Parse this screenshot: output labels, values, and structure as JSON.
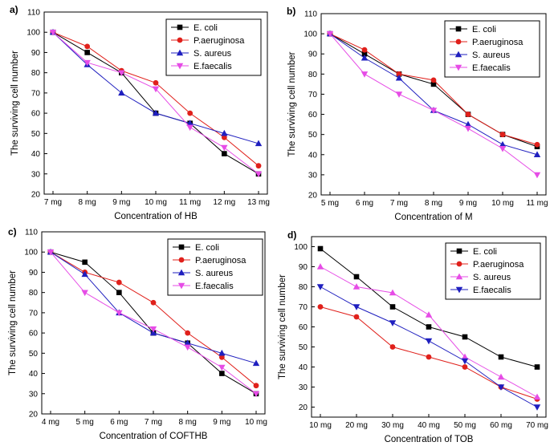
{
  "chart_data": [
    {
      "type": "line",
      "panel_label": "a)",
      "xlabel": "Concentration of HB",
      "ylabel": "The surviving cell number",
      "categories": [
        "7  mg",
        "8  mg",
        "9  mg",
        "10 mg",
        "11 mg",
        "12 mg",
        "13 mg"
      ],
      "ylim": [
        20,
        110
      ],
      "yticks": [
        20,
        30,
        40,
        50,
        60,
        70,
        80,
        90,
        100,
        110
      ],
      "legend_position": "top-right",
      "series": [
        {
          "name": "E. coli",
          "color": "#000000",
          "marker": "square",
          "values": [
            100,
            90,
            80,
            60,
            55,
            40,
            30
          ]
        },
        {
          "name": "P.aeruginosa",
          "color": "#e0201b",
          "marker": "circle",
          "values": [
            100,
            93,
            81,
            75,
            60,
            48,
            34
          ]
        },
        {
          "name": "S. aureus",
          "color": "#1f1fbf",
          "marker": "triangle-up",
          "values": [
            100,
            84,
            70,
            60,
            55,
            50,
            45
          ]
        },
        {
          "name": "E.faecalis",
          "color": "#e64ce6",
          "marker": "triangle-down",
          "values": [
            100,
            85,
            80,
            72,
            53,
            43,
            30
          ]
        }
      ]
    },
    {
      "type": "line",
      "panel_label": "b)",
      "xlabel": "Concentration of M",
      "ylabel": "The surviving cell number",
      "categories": [
        "5  mg",
        "6  mg",
        "7  mg",
        "8  mg",
        "9  mg",
        "10 mg",
        "11 mg"
      ],
      "ylim": [
        20,
        110
      ],
      "yticks": [
        20,
        30,
        40,
        50,
        60,
        70,
        80,
        90,
        100,
        110
      ],
      "legend_position": "top-right",
      "series": [
        {
          "name": "E. coli",
          "color": "#000000",
          "marker": "square",
          "values": [
            100,
            90,
            80,
            75,
            60,
            50,
            44
          ]
        },
        {
          "name": "P.aeruginosa",
          "color": "#e0201b",
          "marker": "circle",
          "values": [
            100,
            92,
            80,
            77,
            60,
            50,
            45
          ]
        },
        {
          "name": "S. aureus",
          "color": "#1f1fbf",
          "marker": "triangle-up",
          "values": [
            100,
            88,
            78,
            62,
            55,
            45,
            40
          ]
        },
        {
          "name": "E.faecalis",
          "color": "#e64ce6",
          "marker": "triangle-down",
          "values": [
            100,
            80,
            70,
            62,
            53,
            43,
            30
          ]
        }
      ]
    },
    {
      "type": "line",
      "panel_label": "c)",
      "xlabel": "Concentration of COFTHB",
      "ylabel": "The surviving cell number",
      "categories": [
        "4  mg",
        "5  mg",
        "6  mg",
        "7  mg",
        "8  mg",
        "9  mg",
        "10 mg"
      ],
      "ylim": [
        20,
        110
      ],
      "yticks": [
        20,
        30,
        40,
        50,
        60,
        70,
        80,
        90,
        100,
        110
      ],
      "legend_position": "top-right",
      "series": [
        {
          "name": "E. coli",
          "color": "#000000",
          "marker": "square",
          "values": [
            100,
            95,
            80,
            60,
            55,
            40,
            30
          ]
        },
        {
          "name": "P.aeruginosa",
          "color": "#e0201b",
          "marker": "circle",
          "values": [
            100,
            90,
            85,
            75,
            60,
            48,
            34
          ]
        },
        {
          "name": "S. aureus",
          "color": "#1f1fbf",
          "marker": "triangle-up",
          "values": [
            100,
            89,
            70,
            60,
            55,
            50,
            45
          ]
        },
        {
          "name": "E.faecalis",
          "color": "#e64ce6",
          "marker": "triangle-down",
          "values": [
            100,
            80,
            70,
            62,
            53,
            43,
            30
          ]
        }
      ]
    },
    {
      "type": "line",
      "panel_label": "d)",
      "xlabel": "Concentration of TOB",
      "ylabel": "The surviving cell number",
      "categories": [
        "10 mg",
        "20 mg",
        "30 mg",
        "40 mg",
        "50 mg",
        "60 mg",
        "70 mg"
      ],
      "ylim": [
        15,
        105
      ],
      "yticks": [
        20,
        30,
        40,
        50,
        60,
        70,
        80,
        90,
        100
      ],
      "legend_position": "top-right",
      "series": [
        {
          "name": "E. coli",
          "color": "#000000",
          "marker": "square",
          "values": [
            99,
            85,
            70,
            60,
            55,
            45,
            40
          ]
        },
        {
          "name": "P.aeruginosa",
          "color": "#e0201b",
          "marker": "circle",
          "values": [
            70,
            65,
            50,
            45,
            40,
            30,
            24
          ]
        },
        {
          "name": "S. aureus",
          "color": "#e64ce6",
          "marker": "triangle-up",
          "values": [
            90,
            80,
            77,
            66,
            45,
            35,
            25
          ]
        },
        {
          "name": "E.faecalis",
          "color": "#1f1fbf",
          "marker": "triangle-down",
          "values": [
            80,
            70,
            62,
            53,
            43,
            30,
            20
          ]
        }
      ]
    }
  ]
}
